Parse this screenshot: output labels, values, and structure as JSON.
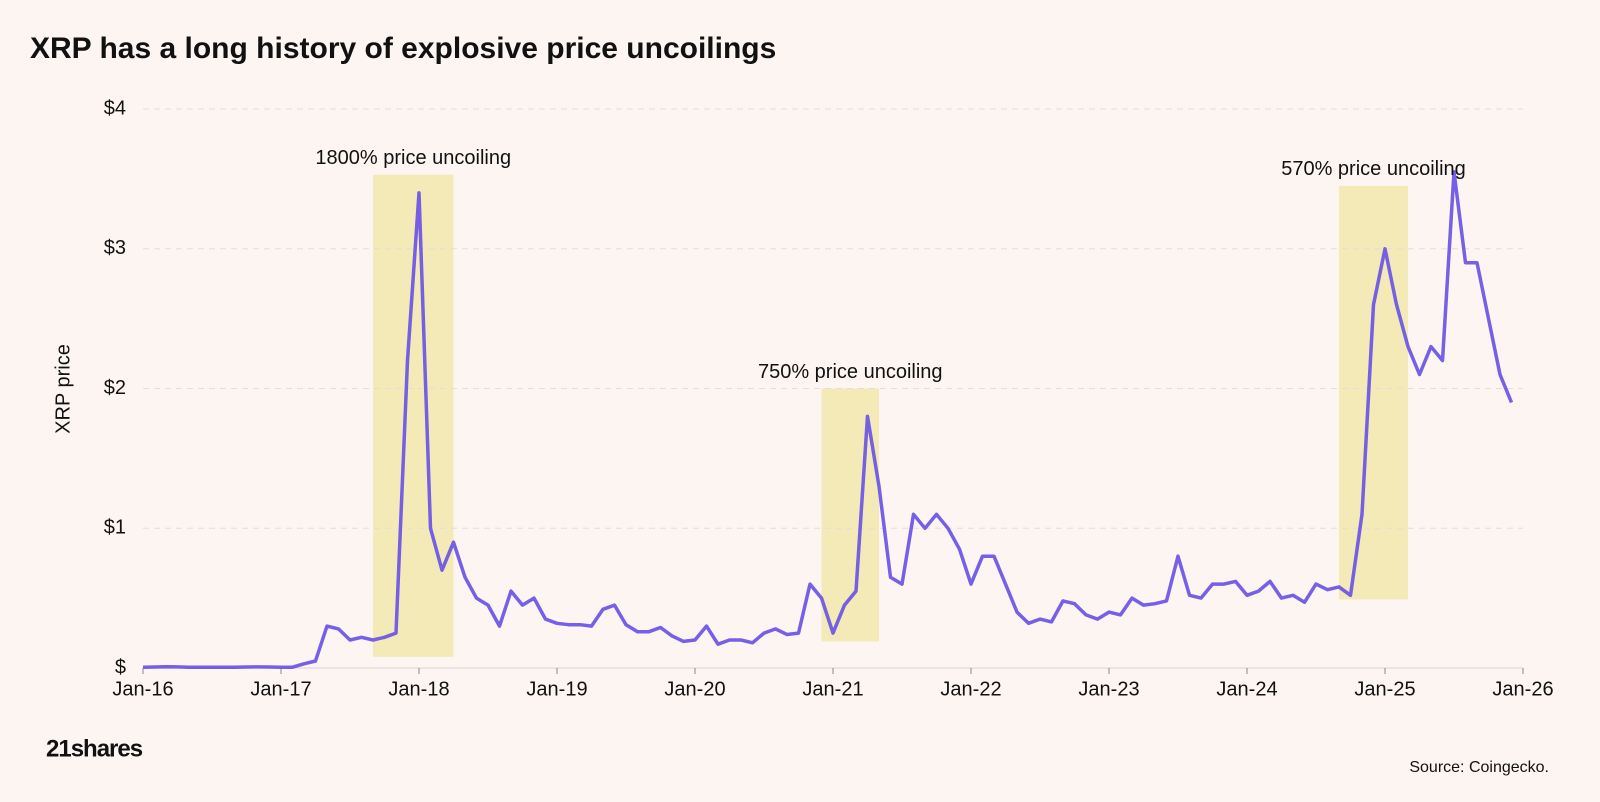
{
  "chart_data": {
    "type": "line",
    "title": "XRP has a long history of explosive price uncoilings",
    "y_label": "XRP price",
    "source": "Source: Coingecko.",
    "brand": "21shares",
    "color": "#6a52e6",
    "x": [
      "Jan-16",
      "Feb-16",
      "Mar-16",
      "Apr-16",
      "May-16",
      "Jun-16",
      "Jul-16",
      "Aug-16",
      "Sep-16",
      "Oct-16",
      "Nov-16",
      "Dec-16",
      "Jan-17",
      "Feb-17",
      "Mar-17",
      "Apr-17",
      "May-17",
      "Jun-17",
      "Jul-17",
      "Aug-17",
      "Sep-17",
      "Oct-17",
      "Nov-17",
      "Dec-17",
      "Jan-18",
      "Feb-18",
      "Mar-18",
      "Apr-18",
      "May-18",
      "Jun-18",
      "Jul-18",
      "Aug-18",
      "Sep-18",
      "Oct-18",
      "Nov-18",
      "Dec-18",
      "Jan-19",
      "Feb-19",
      "Mar-19",
      "Apr-19",
      "May-19",
      "Jun-19",
      "Jul-19",
      "Aug-19",
      "Sep-19",
      "Oct-19",
      "Nov-19",
      "Dec-19",
      "Jan-20",
      "Feb-20",
      "Mar-20",
      "Apr-20",
      "May-20",
      "Jun-20",
      "Jul-20",
      "Aug-20",
      "Sep-20",
      "Oct-20",
      "Nov-20",
      "Dec-20",
      "Jan-21",
      "Feb-21",
      "Mar-21",
      "Apr-21",
      "May-21",
      "Jun-21",
      "Jul-21",
      "Aug-21",
      "Sep-21",
      "Oct-21",
      "Nov-21",
      "Dec-21",
      "Jan-22",
      "Feb-22",
      "Mar-22",
      "Apr-22",
      "May-22",
      "Jun-22",
      "Jul-22",
      "Aug-22",
      "Sep-22",
      "Oct-22",
      "Nov-22",
      "Dec-22",
      "Jan-23",
      "Feb-23",
      "Mar-23",
      "Apr-23",
      "May-23",
      "Jun-23",
      "Jul-23",
      "Aug-23",
      "Sep-23",
      "Oct-23",
      "Nov-23",
      "Dec-23",
      "Jan-24",
      "Feb-24",
      "Mar-24",
      "Apr-24",
      "May-24",
      "Jun-24",
      "Jul-24",
      "Aug-24",
      "Sep-24",
      "Oct-24",
      "Nov-24",
      "Dec-24",
      "Jan-25",
      "Feb-25",
      "Mar-25",
      "Apr-25",
      "May-25",
      "Jun-25",
      "Jul-25",
      "Aug-25",
      "Sep-25",
      "Oct-25",
      "Nov-25",
      "Dec-25"
    ],
    "series": [
      {
        "name": "XRP price",
        "color": "#6a52e6",
        "values": [
          0.006,
          0.007,
          0.009,
          0.008,
          0.006,
          0.006,
          0.006,
          0.006,
          0.006,
          0.007,
          0.008,
          0.007,
          0.006,
          0.006,
          0.03,
          0.05,
          0.3,
          0.28,
          0.2,
          0.22,
          0.2,
          0.22,
          0.25,
          2.2,
          3.4,
          1.0,
          0.7,
          0.9,
          0.65,
          0.5,
          0.45,
          0.3,
          0.55,
          0.45,
          0.5,
          0.35,
          0.32,
          0.31,
          0.31,
          0.3,
          0.42,
          0.45,
          0.31,
          0.26,
          0.26,
          0.29,
          0.23,
          0.19,
          0.2,
          0.3,
          0.17,
          0.2,
          0.2,
          0.18,
          0.25,
          0.28,
          0.24,
          0.25,
          0.6,
          0.5,
          0.25,
          0.45,
          0.55,
          1.8,
          1.3,
          0.65,
          0.6,
          1.1,
          1.0,
          1.1,
          1.0,
          0.85,
          0.6,
          0.8,
          0.8,
          0.6,
          0.4,
          0.32,
          0.35,
          0.33,
          0.48,
          0.46,
          0.38,
          0.35,
          0.4,
          0.38,
          0.5,
          0.45,
          0.46,
          0.48,
          0.8,
          0.52,
          0.5,
          0.6,
          0.6,
          0.62,
          0.52,
          0.55,
          0.62,
          0.5,
          0.52,
          0.47,
          0.6,
          0.56,
          0.58,
          0.52,
          1.1,
          2.6,
          3.0,
          2.6,
          2.3,
          2.1,
          2.3,
          2.2,
          3.55,
          2.9,
          2.9,
          2.5,
          2.1,
          1.9
        ]
      }
    ],
    "xlim": [
      "Jan-16",
      "Jan-26"
    ],
    "xticks": [
      "Jan-16",
      "Jan-17",
      "Jan-18",
      "Jan-19",
      "Jan-20",
      "Jan-21",
      "Jan-22",
      "Jan-23",
      "Jan-24",
      "Jan-25",
      "Jan-26"
    ],
    "ylim": [
      0,
      4
    ],
    "yticks": [
      {
        "value": 0,
        "label": "$"
      },
      {
        "value": 1,
        "label": "$1"
      },
      {
        "value": 2,
        "label": "$2"
      },
      {
        "value": 3,
        "label": "$3"
      },
      {
        "value": 4,
        "label": "$4"
      }
    ],
    "grid": true,
    "highlights": [
      {
        "label": "1800% price uncoiling",
        "from": "Sep-17",
        "to": "Apr-18",
        "low": 0.08,
        "high": 3.53
      },
      {
        "label": "750% price uncoiling",
        "from": "Dec-20",
        "to": "May-21",
        "low": 0.19,
        "high": 2.0
      },
      {
        "label": "570% price uncoiling",
        "from": "Sep-24",
        "to": "Mar-25",
        "low": 0.49,
        "high": 3.45
      }
    ],
    "highlight_color": "#f3eab8"
  }
}
